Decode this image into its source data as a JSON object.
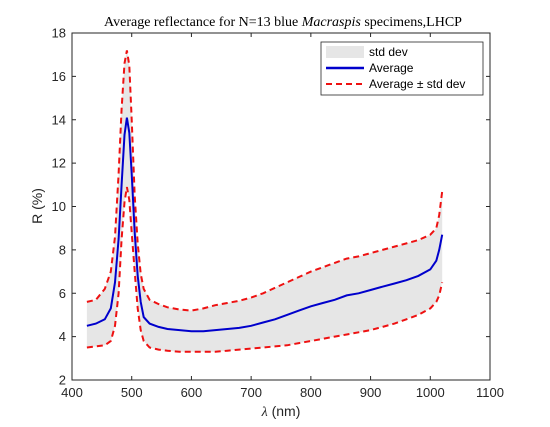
{
  "chart_data": {
    "type": "line",
    "title": {
      "prefix": "Average reflectance for N=13 blue ",
      "italic": "Macraspis",
      "suffix": " specimens,LHCP"
    },
    "xlabel": {
      "symbol": "λ",
      "unit": " (nm)"
    },
    "ylabel": "R (%)",
    "xlim": [
      400,
      1100
    ],
    "ylim": [
      2,
      18
    ],
    "xticks": [
      400,
      500,
      600,
      700,
      800,
      900,
      1000,
      1100
    ],
    "yticks": [
      2,
      4,
      6,
      8,
      10,
      12,
      14,
      16,
      18
    ],
    "grid": false,
    "legend_position": "top-right",
    "series": [
      {
        "name": "std dev",
        "kind": "band",
        "color": "#e6e6e6"
      },
      {
        "name": "Average",
        "kind": "line",
        "color": "#0000cc"
      },
      {
        "name": "Average ± std dev",
        "kind": "dashed",
        "color": "#ee1111"
      }
    ],
    "x": [
      425,
      440,
      455,
      465,
      472,
      478,
      483,
      488,
      492,
      496,
      500,
      505,
      510,
      515,
      520,
      530,
      545,
      560,
      580,
      600,
      620,
      640,
      660,
      680,
      700,
      720,
      740,
      760,
      780,
      800,
      820,
      840,
      860,
      880,
      900,
      920,
      940,
      960,
      980,
      1000,
      1010,
      1015,
      1020
    ],
    "average": [
      4.5,
      4.6,
      4.8,
      5.3,
      6.5,
      8.5,
      11.0,
      13.3,
      14.1,
      13.4,
      11.5,
      8.8,
      6.8,
      5.6,
      4.9,
      4.6,
      4.45,
      4.35,
      4.3,
      4.25,
      4.25,
      4.3,
      4.35,
      4.4,
      4.5,
      4.65,
      4.8,
      5.0,
      5.2,
      5.4,
      5.55,
      5.7,
      5.9,
      6.0,
      6.15,
      6.3,
      6.45,
      6.6,
      6.8,
      7.1,
      7.5,
      8.0,
      8.7
    ],
    "upper": [
      5.6,
      5.7,
      6.2,
      7.0,
      8.6,
      11.5,
      14.5,
      16.6,
      17.2,
      16.5,
      14.0,
      10.5,
      8.3,
      6.9,
      6.2,
      5.7,
      5.5,
      5.35,
      5.25,
      5.2,
      5.3,
      5.45,
      5.55,
      5.65,
      5.8,
      6.0,
      6.25,
      6.5,
      6.75,
      7.0,
      7.2,
      7.4,
      7.6,
      7.7,
      7.85,
      8.0,
      8.15,
      8.3,
      8.45,
      8.7,
      9.0,
      9.6,
      10.7
    ],
    "lower": [
      3.5,
      3.55,
      3.6,
      3.8,
      4.5,
      6.0,
      8.5,
      10.2,
      10.9,
      10.3,
      8.8,
      7.0,
      5.3,
      4.3,
      3.8,
      3.5,
      3.4,
      3.35,
      3.3,
      3.3,
      3.3,
      3.3,
      3.35,
      3.4,
      3.45,
      3.5,
      3.55,
      3.6,
      3.7,
      3.8,
      3.9,
      4.0,
      4.1,
      4.2,
      4.3,
      4.45,
      4.6,
      4.8,
      5.0,
      5.3,
      5.6,
      5.9,
      6.5
    ]
  }
}
